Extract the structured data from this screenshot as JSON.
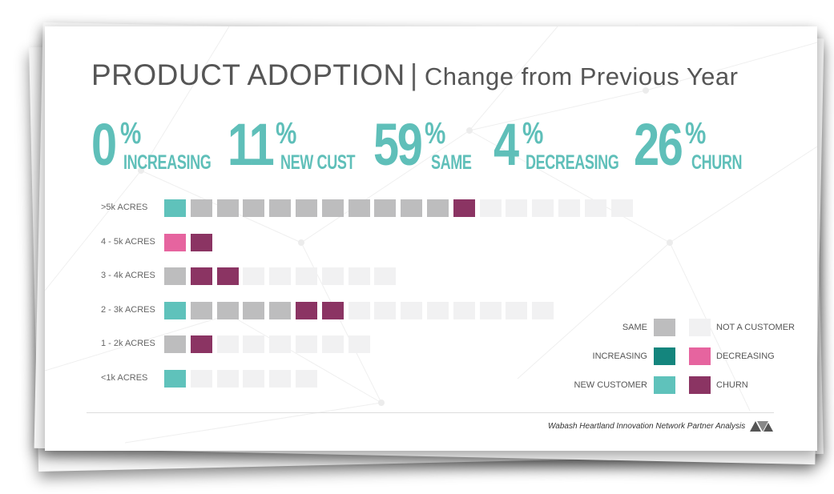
{
  "title": "PRODUCT ADOPTION",
  "separator": "|",
  "subtitle": "Change from Previous Year",
  "stats": [
    {
      "value": "0",
      "pct": "%",
      "label": "INCREASING"
    },
    {
      "value": "11",
      "pct": "%",
      "label": "NEW CUST"
    },
    {
      "value": "59",
      "pct": "%",
      "label": "SAME"
    },
    {
      "value": "4",
      "pct": "%",
      "label": "DECREASING"
    },
    {
      "value": "26",
      "pct": "%",
      "label": "CHURN"
    }
  ],
  "colors": {
    "same": "#bdbdbe",
    "not_customer": "#f1f1f2",
    "increasing": "#14857d",
    "decreasing": "#e6649f",
    "new_customer": "#5fc2bb",
    "churn": "#8b3463",
    "stat_text": "#5fbfb9"
  },
  "chart_data": {
    "type": "waffle",
    "categories": [
      ">5k ACRES",
      "4 - 5k ACRES",
      "3 - 4k ACRES",
      "2 - 3k ACRES",
      "1 - 2k ACRES",
      "<1k ACRES"
    ],
    "rows": [
      [
        "new_customer",
        "same",
        "same",
        "same",
        "same",
        "same",
        "same",
        "same",
        "same",
        "same",
        "same",
        "churn",
        "not_customer",
        "not_customer",
        "not_customer",
        "not_customer",
        "not_customer",
        "not_customer"
      ],
      [
        "decreasing",
        "churn"
      ],
      [
        "same",
        "churn",
        "churn",
        "not_customer",
        "not_customer",
        "not_customer",
        "not_customer",
        "not_customer",
        "not_customer"
      ],
      [
        "new_customer",
        "same",
        "same",
        "same",
        "same",
        "churn",
        "churn",
        "not_customer",
        "not_customer",
        "not_customer",
        "not_customer",
        "not_customer",
        "not_customer",
        "not_customer",
        "not_customer"
      ],
      [
        "same",
        "churn",
        "not_customer",
        "not_customer",
        "not_customer",
        "not_customer",
        "not_customer",
        "not_customer"
      ],
      [
        "new_customer",
        "not_customer",
        "not_customer",
        "not_customer",
        "not_customer",
        "not_customer"
      ]
    ],
    "legend": [
      {
        "key": "same",
        "label": "SAME"
      },
      {
        "key": "not_customer",
        "label": "NOT A CUSTOMER"
      },
      {
        "key": "increasing",
        "label": "INCREASING"
      },
      {
        "key": "decreasing",
        "label": "DECREASING"
      },
      {
        "key": "new_customer",
        "label": "NEW CUSTOMER"
      },
      {
        "key": "churn",
        "label": "CHURN"
      }
    ]
  },
  "source": "Wabash Heartland Innovation Network Partner Analysis",
  "logo": {
    "name": "whin-logo-icon"
  }
}
